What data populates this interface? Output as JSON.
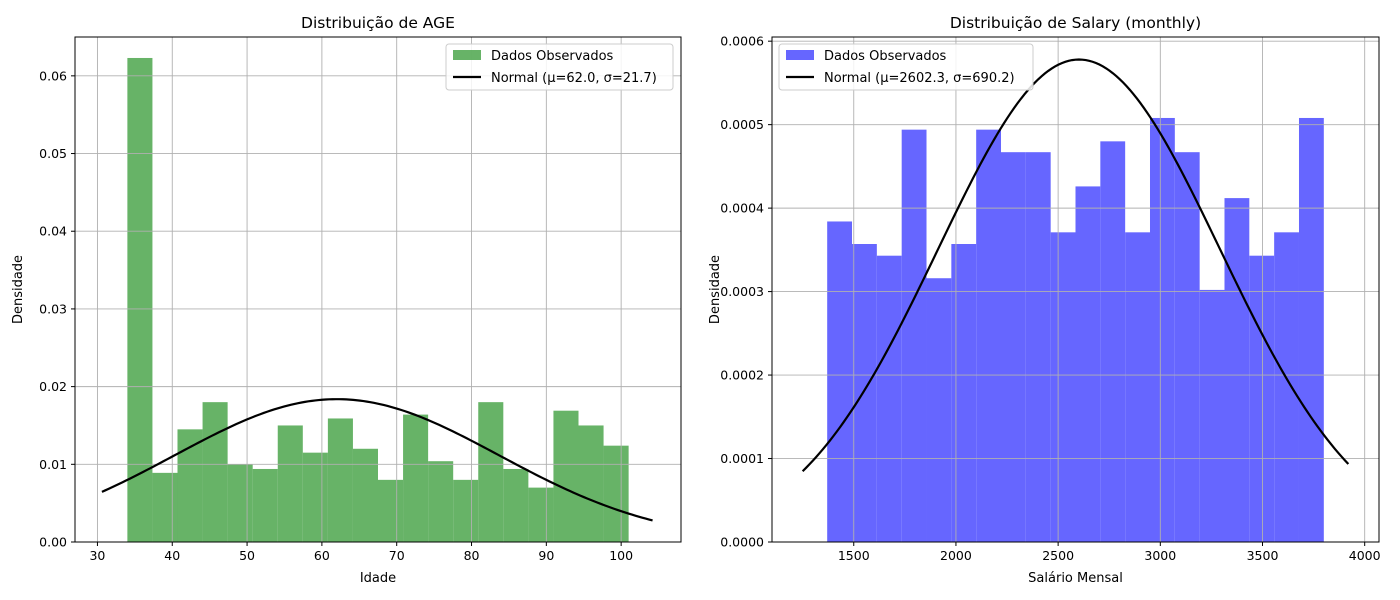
{
  "chart_data": [
    {
      "type": "bar",
      "title": "Distribuição de AGE",
      "xlabel": "Idade",
      "ylabel": "Densidade",
      "xlim": [
        27,
        108
      ],
      "ylim": [
        0,
        0.065
      ],
      "xticks": [
        30,
        40,
        50,
        60,
        70,
        80,
        90,
        100
      ],
      "yticks": [
        0.0,
        0.01,
        0.02,
        0.03,
        0.04,
        0.05,
        0.06
      ],
      "ytick_decimals": 2,
      "grid": true,
      "legend_position": "top-right",
      "bar_color": "#4ca64c",
      "bar_alpha": 0.85,
      "histogram": {
        "name": "Dados Observados",
        "bin_edges": [
          34,
          37.35,
          40.7,
          44.05,
          47.4,
          50.75,
          54.1,
          57.45,
          60.8,
          64.15,
          67.5,
          70.85,
          74.2,
          77.55,
          80.9,
          84.25,
          87.6,
          90.95,
          94.3,
          97.65,
          101
        ],
        "values": [
          0.0623,
          0.0089,
          0.0145,
          0.018,
          0.01,
          0.0094,
          0.015,
          0.0115,
          0.0159,
          0.012,
          0.008,
          0.0164,
          0.0104,
          0.008,
          0.018,
          0.0094,
          0.007,
          0.0169,
          0.015,
          0.0124
        ]
      },
      "curve": {
        "name": "Normal (μ=62.0, σ=21.7)",
        "mu": 62.0,
        "sigma": 21.7,
        "x_range": [
          30.6,
          104.2
        ],
        "color": "#000000"
      }
    },
    {
      "type": "bar",
      "title": "Distribuição de Salary (monthly)",
      "xlabel": "Salário Mensal",
      "ylabel": "Densidade",
      "xlim": [
        1100,
        4070
      ],
      "ylim": [
        0,
        0.000605
      ],
      "xticks": [
        1500,
        2000,
        2500,
        3000,
        3500,
        4000
      ],
      "yticks": [
        0.0,
        0.0001,
        0.0002,
        0.0003,
        0.0004,
        0.0005,
        0.0006
      ],
      "ytick_decimals": 4,
      "grid": true,
      "legend_position": "top-left",
      "bar_color": "#6666ff",
      "bar_alpha": 1,
      "histogram": {
        "name": "Dados Observados",
        "bin_edges": [
          1370,
          1491.5,
          1613,
          1734.5,
          1856,
          1977.5,
          2099,
          2220.5,
          2342,
          2463.5,
          2585,
          2706.5,
          2828,
          2949.5,
          3071,
          3192.5,
          3314,
          3435.5,
          3557,
          3678.5,
          3800
        ],
        "values": [
          0.000384,
          0.000357,
          0.000343,
          0.000494,
          0.000316,
          0.000357,
          0.000494,
          0.000467,
          0.000467,
          0.000371,
          0.000426,
          0.00048,
          0.000371,
          0.000508,
          0.000467,
          0.000302,
          0.000412,
          0.000343,
          0.000371,
          0.000508
        ]
      },
      "curve": {
        "name": "Normal (μ=2602.3, σ=690.2)",
        "mu": 2602.3,
        "sigma": 690.2,
        "x_range": [
          1250,
          3920
        ],
        "color": "#000000"
      }
    }
  ]
}
